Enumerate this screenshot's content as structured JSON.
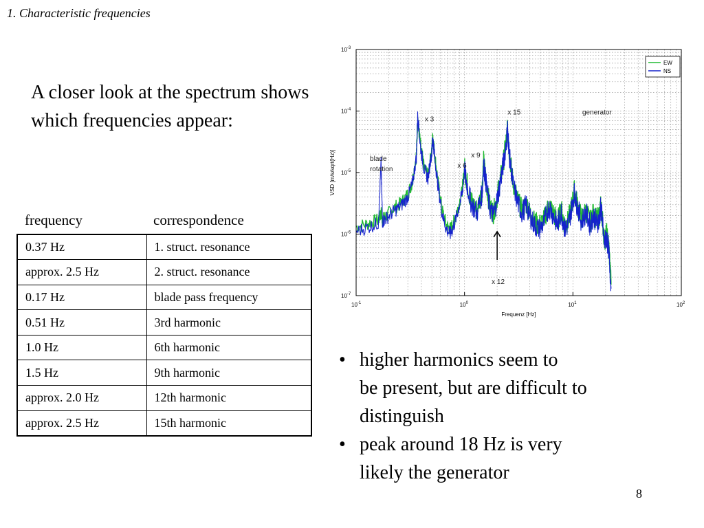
{
  "slide": {
    "section_title": "1. Characteristic frequencies",
    "intro_text": "A closer look at the spectrum shows which frequencies appear:",
    "page_number": "8"
  },
  "table": {
    "headers": [
      "frequency",
      "correspondence"
    ],
    "rows": [
      [
        "0.37 Hz",
        "1. struct. resonance"
      ],
      [
        "approx. 2.5 Hz",
        "2. struct. resonance"
      ],
      [
        "0.17 Hz",
        "blade pass frequency"
      ],
      [
        "0.51 Hz",
        "3rd harmonic"
      ],
      [
        "1.0 Hz",
        "6th harmonic"
      ],
      [
        "1.5 Hz",
        "9th harmonic"
      ],
      [
        "approx. 2.0 Hz",
        "12th harmonic"
      ],
      [
        "approx. 2.5 Hz",
        "15th harmonic"
      ]
    ]
  },
  "bullets": [
    [
      "higher harmonics seem to",
      "be present, but are difficult to",
      "distinguish"
    ],
    [
      "peak around 18 Hz is very",
      "likely the generator"
    ]
  ],
  "chart_data": {
    "type": "line",
    "x_scale": "log",
    "y_scale": "log",
    "xlim": [
      0.1,
      100
    ],
    "ylim": [
      1e-07,
      0.001
    ],
    "xlabel": "Frequenz [Hz]",
    "ylabel": "VSD [m/s/sqrt(Hz)]",
    "x_ticks": [
      {
        "base": "10",
        "exp": "-1"
      },
      {
        "base": "10",
        "exp": "0"
      },
      {
        "base": "10",
        "exp": "1"
      },
      {
        "base": "10",
        "exp": "2"
      }
    ],
    "y_ticks": [
      {
        "base": "10",
        "exp": "-7"
      },
      {
        "base": "10",
        "exp": "-6"
      },
      {
        "base": "10",
        "exp": "-5"
      },
      {
        "base": "10",
        "exp": "-4"
      },
      {
        "base": "10",
        "exp": "-3"
      }
    ],
    "grid": true,
    "legend": {
      "placement": "top-right"
    },
    "series": [
      {
        "name": "EW",
        "color": "#22bb33",
        "x": [
          0.1,
          0.13,
          0.16,
          0.17,
          0.175,
          0.19,
          0.22,
          0.26,
          0.3,
          0.33,
          0.36,
          0.37,
          0.39,
          0.42,
          0.46,
          0.5,
          0.51,
          0.53,
          0.57,
          0.62,
          0.68,
          0.74,
          0.8,
          0.87,
          0.95,
          1.0,
          1.05,
          1.15,
          1.3,
          1.45,
          1.5,
          1.57,
          1.7,
          1.85,
          2.0,
          2.15,
          2.3,
          2.45,
          2.5,
          2.6,
          2.8,
          3.1,
          3.4,
          3.7,
          4.0,
          4.4,
          4.9,
          5.4,
          6.0,
          6.6,
          7.2,
          7.8,
          8.4,
          9.0,
          9.6,
          10.3,
          11.0,
          12.0,
          13.2,
          14.4,
          15.5,
          16.5,
          17.5,
          18.0,
          18.5,
          19.5,
          20.5,
          21.5,
          22.5
        ],
        "y": [
          1.3e-06,
          1.5e-06,
          1.7e-06,
          2.2e-06,
          1.7e-06,
          2e-06,
          2.6e-06,
          3.2e-06,
          4.5e-06,
          7e-06,
          2e-05,
          8e-05,
          3e-05,
          1.3e-05,
          9e-06,
          2.5e-05,
          4e-05,
          2e-05,
          7e-06,
          2.5e-06,
          1.4e-06,
          1.2e-06,
          1.6e-06,
          2.6e-06,
          5e-06,
          1.2e-05,
          7e-06,
          3.5e-06,
          2.5e-06,
          5e-06,
          1.5e-05,
          8e-06,
          3e-06,
          2.2e-06,
          4e-06,
          8e-06,
          1.6e-05,
          3.8e-05,
          5.5e-05,
          2e-05,
          7e-06,
          3.5e-06,
          2.4e-06,
          3.2e-06,
          2.2e-06,
          1.6e-06,
          1.4e-06,
          1.7e-06,
          3e-06,
          2.2e-06,
          1.6e-06,
          2.5e-06,
          1.4e-06,
          1.6e-06,
          2.5e-06,
          5e-06,
          3e-06,
          1.8e-06,
          2.4e-06,
          1.6e-06,
          2.2e-06,
          1.7e-06,
          1.9e-06,
          2.8e-06,
          2.2e-06,
          8e-07,
          1e-06,
          6e-07,
          1.5e-07
        ]
      },
      {
        "name": "NS",
        "color": "#1522cc",
        "x": [
          0.1,
          0.13,
          0.16,
          0.17,
          0.175,
          0.19,
          0.22,
          0.26,
          0.3,
          0.33,
          0.36,
          0.37,
          0.39,
          0.42,
          0.46,
          0.5,
          0.51,
          0.53,
          0.57,
          0.62,
          0.68,
          0.74,
          0.8,
          0.87,
          0.95,
          1.0,
          1.05,
          1.15,
          1.3,
          1.45,
          1.5,
          1.57,
          1.7,
          1.85,
          2.0,
          2.15,
          2.3,
          2.45,
          2.5,
          2.6,
          2.8,
          3.1,
          3.4,
          3.7,
          4.0,
          4.4,
          4.9,
          5.4,
          6.0,
          6.6,
          7.2,
          7.8,
          8.4,
          9.0,
          9.6,
          10.3,
          11.0,
          12.0,
          13.2,
          14.4,
          15.5,
          16.5,
          17.5,
          18.0,
          18.5,
          19.5,
          20.5,
          21.5,
          22.5
        ],
        "y": [
          1.1e-06,
          1.3e-06,
          1.5e-06,
          1.4e-05,
          1.6e-06,
          1.8e-06,
          2.3e-06,
          2.9e-06,
          4e-06,
          6.5e-06,
          1.8e-05,
          9e-05,
          2.8e-05,
          1.2e-05,
          8e-06,
          2.3e-05,
          3.7e-05,
          1.8e-05,
          6e-06,
          2.2e-06,
          1.2e-06,
          1e-06,
          1.4e-06,
          2.4e-06,
          4.5e-06,
          1.1e-05,
          6.5e-06,
          3.2e-06,
          2.2e-06,
          4.5e-06,
          1.4e-05,
          7.5e-06,
          2.7e-06,
          2e-06,
          3.6e-06,
          7.5e-06,
          1.5e-05,
          3.6e-05,
          5e-05,
          1.8e-05,
          6.5e-06,
          3.2e-06,
          2.2e-06,
          3e-06,
          2e-06,
          1.4e-06,
          1.2e-06,
          1.5e-06,
          2.8e-06,
          2e-06,
          1.4e-06,
          2.3e-06,
          1.2e-06,
          1.4e-06,
          2.3e-06,
          4.6e-06,
          2.8e-06,
          1.6e-06,
          2.2e-06,
          1.4e-06,
          2e-06,
          1.5e-06,
          1.7e-06,
          2.6e-06,
          2e-06,
          7e-07,
          9e-07,
          5e-07,
          1.3e-07
        ]
      }
    ],
    "annotations": [
      {
        "text": "blade",
        "x": 0.134,
        "y": 1.55e-05
      },
      {
        "text": "rotation",
        "x": 0.134,
        "y": 1.05e-05
      },
      {
        "text": "x 3",
        "x": 0.43,
        "y": 6.8e-05
      },
      {
        "text": "x 6",
        "x": 0.86,
        "y": 1.2e-05
      },
      {
        "text": "x 9",
        "x": 1.15,
        "y": 1.75e-05
      },
      {
        "text": "x 15",
        "x": 2.5,
        "y": 8.8e-05
      },
      {
        "text": "generator",
        "x": 12.2,
        "y": 8.8e-05
      },
      {
        "text": "x 12",
        "x": 1.78,
        "y": 1.55e-07
      }
    ],
    "arrow": {
      "label": "x 12",
      "x": 2.0,
      "y_from": 3.8e-07,
      "y_to": 1.1e-06
    }
  }
}
